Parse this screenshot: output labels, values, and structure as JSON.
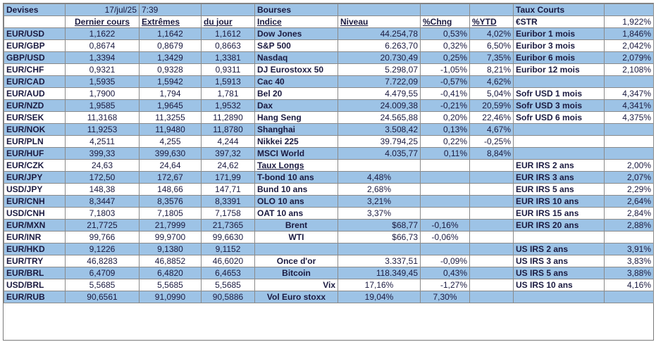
{
  "header": {
    "devises": "Devises",
    "date": "17/jul/25",
    "time": "7:39",
    "bourses": "Bourses",
    "taux_courts": "Taux Courts"
  },
  "subheader": {
    "dernier": "Dernier cours",
    "extremes": "Extrêmes",
    "du_jour": "du jour",
    "indice": "Indice",
    "niveau": "Niveau",
    "pct_chng": "%Chng",
    "pct_ytd": "%YTD",
    "estr": "€STR",
    "estr_val": "1,922%"
  },
  "rows": [
    {
      "pair": "EUR/USD",
      "last": "1,1622",
      "hi": "1,1642",
      "lo": "1,1612",
      "idx": "Dow Jones",
      "lvl": "44.254,78",
      "chg": "0,53%",
      "ytd": "4,02%",
      "rate": "Euribor 1 mois",
      "rval": "1,846%"
    },
    {
      "pair": "EUR/GBP",
      "last": "0,8674",
      "hi": "0,8679",
      "lo": "0,8663",
      "idx": "S&P 500",
      "lvl": "6.263,70",
      "chg": "0,32%",
      "ytd": "6,50%",
      "rate": "Euribor 3 mois",
      "rval": "2,042%"
    },
    {
      "pair": "GBP/USD",
      "last": "1,3394",
      "hi": "1,3429",
      "lo": "1,3381",
      "idx": "Nasdaq",
      "lvl": "20.730,49",
      "chg": "0,25%",
      "ytd": "7,35%",
      "rate": "Euribor 6 mois",
      "rval": "2,079%"
    },
    {
      "pair": "EUR/CHF",
      "last": "0,9321",
      "hi": "0,9328",
      "lo": "0,9311",
      "idx": "DJ Eurostoxx 50",
      "lvl": "5.298,07",
      "chg": "-1,05%",
      "ytd": "8,21%",
      "rate": "Euribor 12 mois",
      "rval": "2,108%"
    },
    {
      "pair": "EUR/CAD",
      "last": "1,5935",
      "hi": "1,5942",
      "lo": "1,5913",
      "idx": "Cac 40",
      "lvl": "7.722,09",
      "chg": "-0,57%",
      "ytd": "4,62%",
      "rate": "",
      "rval": ""
    },
    {
      "pair": "EUR/AUD",
      "last": "1,7900",
      "hi": "1,794",
      "lo": "1,781",
      "idx": "Bel 20",
      "lvl": "4.479,55",
      "chg": "-0,41%",
      "ytd": "5,04%",
      "rate": "Sofr USD 1 mois",
      "rval": "4,347%"
    },
    {
      "pair": "EUR/NZD",
      "last": "1,9585",
      "hi": "1,9645",
      "lo": "1,9532",
      "idx": "Dax",
      "lvl": "24.009,38",
      "chg": "-0,21%",
      "ytd": "20,59%",
      "rate": "Sofr USD 3 mois",
      "rval": "4,341%"
    },
    {
      "pair": "EUR/SEK",
      "last": "11,3168",
      "hi": "11,3255",
      "lo": "11,2890",
      "idx": "Hang Seng",
      "lvl": "24.565,88",
      "chg": "0,20%",
      "ytd": "22,46%",
      "rate": "Sofr USD 6 mois",
      "rval": "4,375%"
    },
    {
      "pair": "EUR/NOK",
      "last": "11,9253",
      "hi": "11,9480",
      "lo": "11,8780",
      "idx": "Shanghai",
      "lvl": "3.508,42",
      "chg": "0,13%",
      "ytd": "4,67%",
      "rate": "",
      "rval": ""
    },
    {
      "pair": "EUR/PLN",
      "last": "4,2511",
      "hi": "4,255",
      "lo": "4,244",
      "idx": "Nikkei 225",
      "lvl": "39.794,25",
      "chg": "0,22%",
      "ytd": "-0,25%",
      "rate": "",
      "rval": ""
    },
    {
      "pair": "EUR/HUF",
      "last": "399,33",
      "hi": "399,630",
      "lo": "397,32",
      "idx": "MSCI World",
      "lvl": "4.035,77",
      "chg": "0,11%",
      "ytd": "8,84%",
      "rate": "",
      "rval": ""
    },
    {
      "pair": "EUR/CZK",
      "last": "24,63",
      "hi": "24,64",
      "lo": "24,62",
      "idx": "Taux Longs",
      "lvl": "",
      "chg": "",
      "ytd": "",
      "rate": "EUR IRS 2 ans",
      "rval": "2,00%"
    },
    {
      "pair": "EUR/JPY",
      "last": "172,50",
      "hi": "172,67",
      "lo": "171,99",
      "idx": "T-bond 10 ans",
      "lvl": "4,48%",
      "chg": "",
      "ytd": "",
      "rate": "EUR IRS 3 ans",
      "rval": "2,07%"
    },
    {
      "pair": "USD/JPY",
      "last": "148,38",
      "hi": "148,66",
      "lo": "147,71",
      "idx": "Bund 10 ans",
      "lvl": "2,68%",
      "chg": "",
      "ytd": "",
      "rate": "EUR IRS 5 ans",
      "rval": "2,29%"
    },
    {
      "pair": "EUR/CNH",
      "last": "8,3447",
      "hi": "8,3576",
      "lo": "8,3391",
      "idx": "OLO 10 ans",
      "lvl": "3,21%",
      "chg": "",
      "ytd": "",
      "rate": "EUR IRS 10 ans",
      "rval": "2,64%"
    },
    {
      "pair": "USD/CNH",
      "last": "7,1803",
      "hi": "7,1805",
      "lo": "7,1758",
      "idx": "OAT 10 ans",
      "lvl": "3,37%",
      "chg": "",
      "ytd": "",
      "rate": "EUR IRS 15 ans",
      "rval": "2,84%"
    },
    {
      "pair": "EUR/MXN",
      "last": "21,7725",
      "hi": "21,7999",
      "lo": "21,7365",
      "idx": "Brent",
      "lvl": "$68,77",
      "chg": "-0,16%",
      "ytd": "",
      "rate": "EUR IRS 20 ans",
      "rval": "2,88%"
    },
    {
      "pair": "EUR/INR",
      "last": "99,766",
      "hi": "99,9700",
      "lo": "99,6630",
      "idx": "WTI",
      "lvl": "$66,73",
      "chg": "-0,06%",
      "ytd": "",
      "rate": "",
      "rval": ""
    },
    {
      "pair": "EUR/HKD",
      "last": "9,1226",
      "hi": "9,1380",
      "lo": "9,1152",
      "idx": "",
      "lvl": "",
      "chg": "",
      "ytd": "",
      "rate": "US IRS 2 ans",
      "rval": "3,91%"
    },
    {
      "pair": "EUR/TRY",
      "last": "46,8283",
      "hi": "46,8852",
      "lo": "46,6020",
      "idx": "Once d'or",
      "lvl": "3.337,51",
      "chg": "-0,09%",
      "ytd": "",
      "rate": "US IRS 3 ans",
      "rval": "3,83%"
    },
    {
      "pair": "EUR/BRL",
      "last": "6,4709",
      "hi": "6,4820",
      "lo": "6,4653",
      "idx": "Bitcoin",
      "lvl": "118.349,45",
      "chg": "0,43%",
      "ytd": "",
      "rate": "US IRS 5 ans",
      "rval": "3,88%"
    },
    {
      "pair": "USD/BRL",
      "last": "5,5685",
      "hi": "5,5685",
      "lo": "5,5685",
      "idx": "Vix",
      "lvl": "17,16%",
      "chg": "-1,27%",
      "ytd": "",
      "rate": "US IRS 10 ans",
      "rval": "4,16%"
    },
    {
      "pair": "EUR/RUB",
      "last": "90,6561",
      "hi": "91,0990",
      "lo": "90,5886",
      "idx": "Vol Euro stoxx",
      "lvl": "19,04%",
      "chg": "7,30%",
      "ytd": "",
      "rate": "",
      "rval": ""
    }
  ],
  "colors": {
    "blue_row": "#9dc3e6",
    "white_row": "#ffffff",
    "text": "#1a1a40"
  }
}
